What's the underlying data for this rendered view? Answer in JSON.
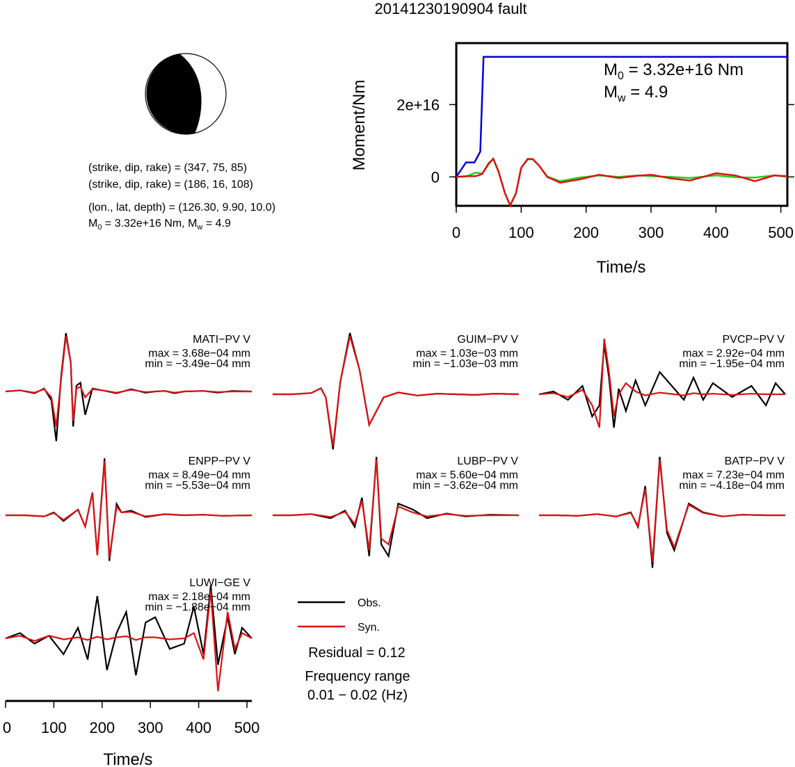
{
  "figure": {
    "title": "20141230190904 fault",
    "info_lines": [
      "(strike, dip, rake) = (347, 75, 85)",
      "(strike, dip, rake) = (186, 16, 108)",
      "(lon., lat, depth) = (126.30, 9.90, 10.0)"
    ],
    "info_moment": {
      "m_prefix": "M",
      "m_sub": "0",
      "m_mid": " = 3.32e+16 Nm, M",
      "w_sub": "w",
      "w_rest": " = 4.9"
    },
    "beachball": {
      "name": "focal-mechanism",
      "fill": "#000000"
    },
    "legend": {
      "obs_label": "Obs.",
      "syn_label": "Syn."
    },
    "residual": "Residual = 0.12",
    "freq_title": "Frequency range",
    "freq_value": "0.01 − 0.02 (Hz)"
  },
  "chart_data": [
    {
      "type": "line",
      "title": "",
      "xlabel": "Time/s",
      "ylabel": "Moment/Nm",
      "xlim": [
        0,
        510
      ],
      "ylim": [
        -8000000000000000.0,
        3.7e+16
      ],
      "xticks": [
        0,
        100,
        200,
        300,
        400,
        500
      ],
      "yticks": [
        {
          "value": 0,
          "label": "0"
        },
        {
          "value": 2e+16,
          "label": "2e+16"
        }
      ],
      "annotation": {
        "m0": "3.32e+16 Nm",
        "mw": "4.9"
      },
      "series": [
        {
          "color": "#0000dd",
          "x": [
            0,
            15,
            28,
            37,
            42,
            60,
            510
          ],
          "y": [
            0,
            4000000000000000.0,
            4000000000000000.0,
            7000000000000000.0,
            3.32e+16,
            3.32e+16,
            3.32e+16
          ]
        },
        {
          "color": "#22cc22",
          "x": [
            0,
            15,
            30,
            40,
            50,
            57,
            65,
            75,
            83,
            92,
            100,
            110,
            118,
            128,
            140,
            160,
            190,
            220,
            250,
            280,
            300,
            330,
            360,
            400,
            430,
            460,
            490,
            510
          ],
          "y": [
            0,
            100000000000000.0,
            1200000000000000.0,
            900000000000000.0,
            3500000000000000.0,
            5000000000000000.0,
            1500000000000000.0,
            -4500000000000000.0,
            -7800000000000000.0,
            -4500000000000000.0,
            2500000000000000.0,
            4800000000000000.0,
            4900000000000000.0,
            3000000000000000.0,
            100000000000000.0,
            -1200000000000000.0,
            -200000000000000.0,
            400000000000000.0,
            0,
            400000000000000.0,
            200000000000000.0,
            0,
            -300000000000000.0,
            400000000000000.0,
            -100000000000000.0,
            -200000000000000.0,
            400000000000000.0,
            0
          ]
        },
        {
          "color": "#dd1111",
          "x": [
            0,
            15,
            30,
            40,
            50,
            57,
            65,
            75,
            83,
            92,
            100,
            110,
            118,
            128,
            140,
            160,
            190,
            220,
            250,
            280,
            300,
            330,
            360,
            400,
            430,
            460,
            490,
            510
          ],
          "y": [
            0,
            200000000000000.0,
            200000000000000.0,
            800000000000000.0,
            3800000000000000.0,
            5000000000000000.0,
            1500000000000000.0,
            -4500000000000000.0,
            -7900000000000000.0,
            -4500000000000000.0,
            2500000000000000.0,
            5000000000000000.0,
            4900000000000000.0,
            3000000000000000.0,
            0,
            -1600000000000000.0,
            -700000000000000.0,
            600000000000000.0,
            -300000000000000.0,
            300000000000000.0,
            600000000000000.0,
            -400000000000000.0,
            -1000000000000000.0,
            1000000000000000.0,
            400000000000000.0,
            -1200000000000000.0,
            400000000000000.0,
            200000000000000.0
          ]
        }
      ]
    },
    {
      "type": "line",
      "title": "",
      "xlabel": "Time/s",
      "ylabel": "",
      "xlim": [
        0,
        510
      ],
      "xticks": [
        0,
        100,
        200,
        300,
        400,
        500
      ],
      "stations": [
        {
          "name": "MATI−PV V",
          "max": "max = 3.68e−04 mm",
          "min": "min = −3.49e−04 mm",
          "x": [
            0,
            30,
            60,
            80,
            95,
            105,
            115,
            125,
            135,
            140,
            147,
            155,
            165,
            180,
            200,
            230,
            260,
            290,
            310,
            330,
            350,
            370,
            410,
            440,
            470,
            510
          ],
          "obs": [
            0,
            0.02,
            -0.03,
            0.05,
            -0.15,
            -0.85,
            0.25,
            1.0,
            0.5,
            -0.6,
            0.1,
            0.15,
            -0.4,
            0.05,
            0.02,
            -0.03,
            0.04,
            -0.02,
            0.0,
            0.01,
            -0.03,
            0.0,
            0.01,
            -0.02,
            0.01,
            0
          ],
          "syn": [
            0,
            0.02,
            -0.02,
            0.04,
            -0.1,
            -0.6,
            0.2,
            0.95,
            0.5,
            -0.5,
            0.05,
            0.08,
            -0.1,
            0.04,
            0.02,
            -0.02,
            0.03,
            -0.01,
            0.0,
            0.01,
            -0.02,
            0.0,
            0.01,
            -0.01,
            0.0,
            0
          ]
        },
        {
          "name": "GUIM−PV V",
          "max": "max = 1.03e−03 mm",
          "min": "min = −1.03e−03 mm",
          "x": [
            0,
            40,
            80,
            100,
            110,
            125,
            140,
            160,
            180,
            200,
            230,
            260,
            300,
            340,
            380,
            420,
            460,
            510
          ],
          "obs": [
            0,
            0.0,
            0.02,
            0.1,
            -0.05,
            -0.9,
            0.2,
            1.0,
            0.4,
            -0.5,
            -0.05,
            0.03,
            -0.02,
            0.01,
            0.0,
            -0.01,
            0.01,
            0
          ],
          "syn": [
            0,
            0.0,
            0.02,
            0.1,
            -0.05,
            -0.85,
            0.2,
            0.95,
            0.4,
            -0.5,
            -0.05,
            0.03,
            -0.02,
            0.01,
            0.0,
            -0.01,
            0.01,
            0
          ]
        },
        {
          "name": "PVCP−PV V",
          "max": "max = 2.92e−04 mm",
          "min": "min = −1.95e−04 mm",
          "x": [
            0,
            30,
            60,
            90,
            110,
            125,
            135,
            145,
            155,
            165,
            180,
            200,
            220,
            250,
            280,
            300,
            320,
            340,
            360,
            400,
            440,
            470,
            490,
            510
          ],
          "obs": [
            0,
            0.05,
            -0.1,
            0.15,
            -0.4,
            -0.2,
            0.9,
            0.3,
            -0.6,
            0.1,
            -0.3,
            0.25,
            -0.2,
            0.4,
            0.1,
            -0.1,
            0.3,
            -0.1,
            0.2,
            -0.05,
            0.15,
            -0.2,
            0.2,
            0
          ],
          "syn": [
            0,
            0.02,
            -0.05,
            0.08,
            -0.2,
            -0.6,
            1.0,
            0.4,
            -0.4,
            0.0,
            0.2,
            0.05,
            -0.02,
            0.03,
            0.0,
            -0.02,
            0.02,
            0.0,
            0.01,
            -0.01,
            0.01,
            0.0,
            0.0,
            0
          ]
        },
        {
          "name": "ENPP−PV V",
          "max": "max = 8.49e−04 mm",
          "min": "min = −5.53e−04 mm",
          "x": [
            0,
            40,
            80,
            100,
            120,
            150,
            165,
            180,
            190,
            205,
            215,
            230,
            240,
            260,
            290,
            330,
            370,
            410,
            450,
            510
          ],
          "obs": [
            0,
            0.0,
            -0.02,
            0.05,
            -0.1,
            0.1,
            -0.2,
            0.4,
            -0.7,
            1.0,
            -0.8,
            0.2,
            0.05,
            0.08,
            -0.03,
            0.02,
            0.0,
            0.01,
            -0.01,
            0
          ],
          "syn": [
            0,
            0.0,
            -0.02,
            0.04,
            -0.08,
            0.1,
            -0.2,
            0.4,
            -0.7,
            0.95,
            -0.75,
            0.15,
            0.05,
            0.06,
            -0.02,
            0.02,
            0.0,
            0.01,
            -0.01,
            0
          ],
          "obs_tail_only": true
        },
        {
          "name": "LUBP−PV V",
          "max": "max = 5.60e−04 mm",
          "min": "min = −3.62e−04 mm",
          "x": [
            0,
            40,
            80,
            120,
            150,
            170,
            185,
            200,
            215,
            225,
            240,
            260,
            290,
            320,
            360,
            400,
            450,
            510
          ],
          "obs": [
            0,
            0.0,
            0.02,
            -0.05,
            0.08,
            -0.2,
            0.3,
            -0.7,
            1.0,
            -0.5,
            -0.7,
            0.2,
            0.1,
            -0.05,
            0.03,
            -0.02,
            0.01,
            0
          ],
          "syn": [
            0,
            0.0,
            0.02,
            -0.03,
            0.06,
            -0.15,
            0.25,
            -0.6,
            0.95,
            -0.4,
            -0.5,
            0.15,
            0.05,
            -0.02,
            0.02,
            -0.01,
            0.0,
            0
          ]
        },
        {
          "name": "BATP−PV V",
          "max": "max = 7.23e−04 mm",
          "min": "min = −4.18e−04 mm",
          "x": [
            0,
            40,
            80,
            120,
            160,
            190,
            205,
            220,
            235,
            250,
            265,
            280,
            310,
            340,
            380,
            420,
            470,
            510
          ],
          "obs": [
            0,
            0.0,
            -0.01,
            0.02,
            -0.02,
            0.05,
            -0.2,
            0.5,
            -0.9,
            1.0,
            -0.3,
            -0.6,
            0.2,
            0.05,
            -0.02,
            0.01,
            0.0,
            0
          ],
          "syn": [
            0,
            0.0,
            -0.01,
            0.02,
            -0.02,
            0.04,
            -0.18,
            0.45,
            -0.8,
            0.95,
            -0.25,
            -0.55,
            0.18,
            0.04,
            -0.02,
            0.01,
            0.0,
            0
          ]
        },
        {
          "name": "LUWI−GE V",
          "max": "max = 2.18e−04 mm",
          "min": "min = −1.88e−04 mm",
          "x": [
            0,
            30,
            60,
            90,
            120,
            150,
            170,
            190,
            210,
            230,
            250,
            270,
            290,
            310,
            340,
            370,
            390,
            410,
            425,
            440,
            460,
            475,
            490,
            510
          ],
          "obs": [
            0,
            0.1,
            -0.1,
            0.05,
            -0.3,
            0.2,
            -0.4,
            0.8,
            -0.6,
            0.1,
            0.5,
            -0.7,
            0.3,
            0.4,
            -0.2,
            -0.1,
            0.6,
            -0.3,
            1.0,
            -0.5,
            0.4,
            -0.3,
            0.2,
            0
          ],
          "syn": [
            0,
            0.05,
            -0.05,
            0.05,
            -0.02,
            0.02,
            -0.03,
            0.03,
            -0.02,
            0.02,
            0.04,
            -0.03,
            0.02,
            0.02,
            -0.02,
            0.0,
            0.1,
            -0.4,
            0.9,
            -1.0,
            0.5,
            -0.2,
            0.1,
            0
          ]
        }
      ]
    }
  ]
}
